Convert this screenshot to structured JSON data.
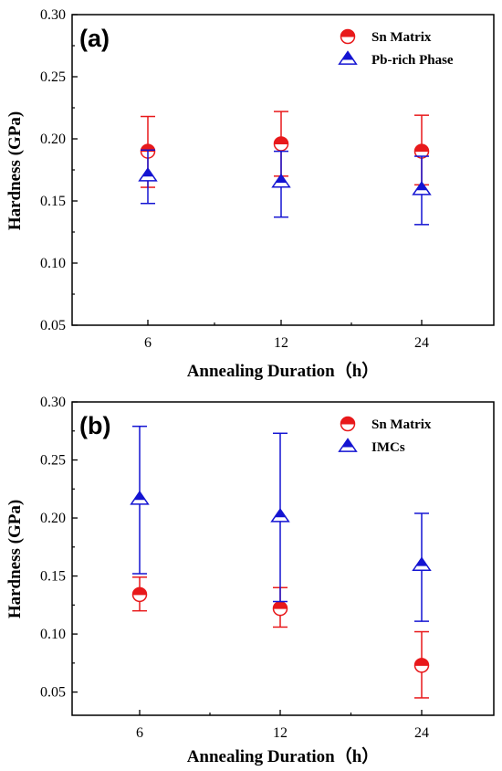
{
  "chart_data": [
    {
      "type": "scatter",
      "panel_label": "(a)",
      "xlabel": "Annealing Duration（h）",
      "ylabel": "Hardness (GPa)",
      "categories": [
        "6",
        "12",
        "24"
      ],
      "ylim": [
        0.05,
        0.3
      ],
      "yticks": [
        "0.05",
        "0.10",
        "0.15",
        "0.20",
        "0.25",
        "0.30"
      ],
      "grid": false,
      "legend_position": "top-right",
      "series": [
        {
          "name": "Sn Matrix",
          "marker": "circle-half",
          "color": "#e8191b",
          "values": [
            0.19,
            0.196,
            0.19
          ],
          "err_low": [
            0.161,
            0.17,
            0.163
          ],
          "err_high": [
            0.218,
            0.222,
            0.219
          ]
        },
        {
          "name": "Pb-rich Phase",
          "marker": "triangle-half",
          "color": "#1414d2",
          "values": [
            0.17,
            0.165,
            0.159
          ],
          "err_low": [
            0.148,
            0.137,
            0.131
          ],
          "err_high": [
            0.191,
            0.19,
            0.186
          ]
        }
      ]
    },
    {
      "type": "scatter",
      "panel_label": "(b)",
      "xlabel": "Annealing Duration（h）",
      "ylabel": "Hardness (GPa)",
      "categories": [
        "6",
        "12",
        "24"
      ],
      "ylim": [
        0.03,
        0.3
      ],
      "yticks": [
        "0.05",
        "0.10",
        "0.15",
        "0.20",
        "0.25",
        "0.30"
      ],
      "grid": false,
      "legend_position": "top-right",
      "series": [
        {
          "name": "Sn Matrix",
          "marker": "circle-half",
          "color": "#e8191b",
          "values": [
            0.134,
            0.122,
            0.073
          ],
          "err_low": [
            0.12,
            0.106,
            0.045
          ],
          "err_high": [
            0.149,
            0.14,
            0.102
          ]
        },
        {
          "name": "IMCs",
          "marker": "triangle-half",
          "color": "#1414d2",
          "values": [
            0.216,
            0.201,
            0.159
          ],
          "err_low": [
            0.152,
            0.128,
            0.111
          ],
          "err_high": [
            0.279,
            0.273,
            0.204
          ]
        }
      ]
    }
  ]
}
